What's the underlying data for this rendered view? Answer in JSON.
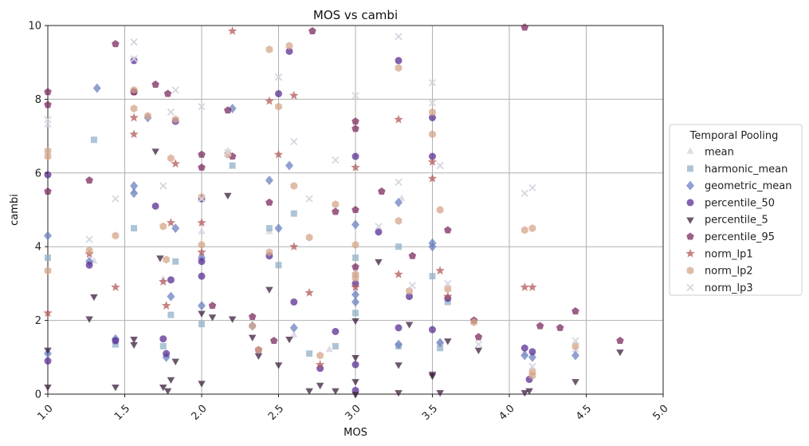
{
  "chart_data": {
    "type": "scatter",
    "title": "MOS vs cambi",
    "xlabel": "MOS",
    "ylabel": "cambi",
    "xlim": [
      1.0,
      5.0
    ],
    "ylim": [
      0,
      10
    ],
    "x_ticks": [
      "1.0",
      "1.5",
      "2.0",
      "2.5",
      "3.0",
      "3.5",
      "4.0",
      "4.5",
      "5.0"
    ],
    "y_ticks": [
      "0",
      "2",
      "4",
      "6",
      "8",
      "10"
    ],
    "grid": true,
    "legend": {
      "title": "Temporal Pooling",
      "placement": "right-outside"
    },
    "series": [
      {
        "name": "mean",
        "marker": "triangle-up",
        "color": "#d9cfe0",
        "points": [
          [
            1.0,
            7.3
          ],
          [
            1.3,
            3.6
          ],
          [
            1.56,
            5.5
          ],
          [
            1.75,
            3.1
          ],
          [
            2.0,
            4.4
          ],
          [
            2.17,
            6.6
          ],
          [
            2.44,
            4.4
          ],
          [
            2.6,
            1.6
          ],
          [
            2.83,
            1.2
          ],
          [
            3.0,
            3.3
          ],
          [
            3.3,
            5.3
          ],
          [
            3.55,
            1.4
          ],
          [
            4.1,
            1.1
          ],
          [
            4.43,
            1.2
          ]
        ]
      },
      {
        "name": "harmonic_mean",
        "marker": "square",
        "color": "#92b0c8",
        "points": [
          [
            1.0,
            3.7
          ],
          [
            1.3,
            6.9
          ],
          [
            1.44,
            1.35
          ],
          [
            1.56,
            4.5
          ],
          [
            1.75,
            1.3
          ],
          [
            1.8,
            2.15
          ],
          [
            1.83,
            3.6
          ],
          [
            2.0,
            1.9
          ],
          [
            2.2,
            6.2
          ],
          [
            2.44,
            4.5
          ],
          [
            2.5,
            3.5
          ],
          [
            2.6,
            4.9
          ],
          [
            2.7,
            1.1
          ],
          [
            2.87,
            1.3
          ],
          [
            3.0,
            3.7
          ],
          [
            3.0,
            2.2
          ],
          [
            3.28,
            4.0
          ],
          [
            3.28,
            1.3
          ],
          [
            3.5,
            3.2
          ],
          [
            3.55,
            1.25
          ],
          [
            3.6,
            2.5
          ]
        ]
      },
      {
        "name": "geometric_mean",
        "marker": "diamond",
        "color": "#6b81c0",
        "points": [
          [
            1.0,
            4.3
          ],
          [
            1.0,
            1.1
          ],
          [
            1.27,
            3.6
          ],
          [
            1.32,
            8.3
          ],
          [
            1.44,
            1.5
          ],
          [
            1.56,
            5.65
          ],
          [
            1.56,
            5.45
          ],
          [
            1.65,
            7.5
          ],
          [
            1.77,
            1.0
          ],
          [
            1.8,
            2.65
          ],
          [
            1.83,
            4.5
          ],
          [
            2.0,
            3.7
          ],
          [
            2.0,
            2.4
          ],
          [
            2.2,
            7.75
          ],
          [
            2.33,
            1.85
          ],
          [
            2.44,
            5.8
          ],
          [
            2.5,
            4.5
          ],
          [
            2.57,
            6.2
          ],
          [
            2.6,
            1.8
          ],
          [
            3.0,
            4.6
          ],
          [
            3.0,
            2.7
          ],
          [
            3.0,
            2.5
          ],
          [
            3.28,
            5.2
          ],
          [
            3.28,
            1.35
          ],
          [
            3.5,
            4.1
          ],
          [
            3.5,
            4.0
          ],
          [
            3.55,
            1.4
          ],
          [
            4.1,
            1.05
          ],
          [
            4.15,
            1.0
          ],
          [
            4.43,
            1.05
          ]
        ]
      },
      {
        "name": "percentile_50",
        "marker": "circle",
        "color": "#5a2d93",
        "points": [
          [
            1.0,
            5.95
          ],
          [
            1.0,
            0.9
          ],
          [
            1.27,
            3.5
          ],
          [
            1.44,
            1.45
          ],
          [
            1.56,
            9.05
          ],
          [
            1.56,
            8.2
          ],
          [
            1.7,
            5.1
          ],
          [
            1.75,
            1.5
          ],
          [
            1.77,
            1.1
          ],
          [
            1.8,
            3.1
          ],
          [
            1.83,
            7.4
          ],
          [
            2.0,
            5.3
          ],
          [
            2.0,
            3.6
          ],
          [
            2.0,
            3.2
          ],
          [
            2.44,
            3.75
          ],
          [
            2.5,
            8.15
          ],
          [
            2.57,
            9.3
          ],
          [
            2.6,
            2.5
          ],
          [
            2.77,
            0.7
          ],
          [
            2.87,
            1.7
          ],
          [
            3.0,
            6.45
          ],
          [
            3.0,
            0.8
          ],
          [
            3.0,
            0.1
          ],
          [
            3.0,
            3.0
          ],
          [
            3.15,
            4.4
          ],
          [
            3.28,
            9.05
          ],
          [
            3.28,
            1.8
          ],
          [
            3.35,
            2.65
          ],
          [
            3.5,
            7.5
          ],
          [
            3.5,
            6.45
          ],
          [
            3.5,
            1.75
          ],
          [
            3.6,
            2.6
          ],
          [
            4.1,
            1.25
          ],
          [
            4.15,
            1.15
          ],
          [
            4.13,
            0.4
          ]
        ]
      },
      {
        "name": "percentile_5",
        "marker": "triangle-down",
        "color": "#3b1f3c",
        "points": [
          [
            1.0,
            0.2
          ],
          [
            1.0,
            1.2
          ],
          [
            1.27,
            2.05
          ],
          [
            1.3,
            2.65
          ],
          [
            1.44,
            0.2
          ],
          [
            1.56,
            1.5
          ],
          [
            1.56,
            1.35
          ],
          [
            1.7,
            6.6
          ],
          [
            1.73,
            3.7
          ],
          [
            1.75,
            0.2
          ],
          [
            1.78,
            0.1
          ],
          [
            1.8,
            0.4
          ],
          [
            1.83,
            0.9
          ],
          [
            2.0,
            0.3
          ],
          [
            2.0,
            2.2
          ],
          [
            2.07,
            2.1
          ],
          [
            2.17,
            5.4
          ],
          [
            2.2,
            2.05
          ],
          [
            2.33,
            1.55
          ],
          [
            2.37,
            1.05
          ],
          [
            2.44,
            2.85
          ],
          [
            2.5,
            0.8
          ],
          [
            2.57,
            1.5
          ],
          [
            2.7,
            0.1
          ],
          [
            2.77,
            0.25
          ],
          [
            2.87,
            0.1
          ],
          [
            3.0,
            1.0
          ],
          [
            3.0,
            0.35
          ],
          [
            3.0,
            0.0
          ],
          [
            3.0,
            2.0
          ],
          [
            3.15,
            3.6
          ],
          [
            3.28,
            0.8
          ],
          [
            3.28,
            0.05
          ],
          [
            3.35,
            1.9
          ],
          [
            3.5,
            0.55
          ],
          [
            3.5,
            0.5
          ],
          [
            3.55,
            0.05
          ],
          [
            3.6,
            1.45
          ],
          [
            3.8,
            1.2
          ],
          [
            4.1,
            0.05
          ],
          [
            4.13,
            0.1
          ],
          [
            4.43,
            0.35
          ],
          [
            4.72,
            1.15
          ]
        ]
      },
      {
        "name": "percentile_95",
        "marker": "pentagon",
        "color": "#7b2a5e",
        "points": [
          [
            1.0,
            8.2
          ],
          [
            1.0,
            7.85
          ],
          [
            1.0,
            5.5
          ],
          [
            1.27,
            5.8
          ],
          [
            1.44,
            9.5
          ],
          [
            1.56,
            8.2
          ],
          [
            1.7,
            8.4
          ],
          [
            1.78,
            8.15
          ],
          [
            2.0,
            6.5
          ],
          [
            2.0,
            6.15
          ],
          [
            2.07,
            2.4
          ],
          [
            2.17,
            7.7
          ],
          [
            2.2,
            6.45
          ],
          [
            2.33,
            2.1
          ],
          [
            2.37,
            1.2
          ],
          [
            2.44,
            5.2
          ],
          [
            2.47,
            1.45
          ],
          [
            2.72,
            9.85
          ],
          [
            2.87,
            4.95
          ],
          [
            3.0,
            7.4
          ],
          [
            3.0,
            7.2
          ],
          [
            3.0,
            5.0
          ],
          [
            3.0,
            3.45
          ],
          [
            3.17,
            5.5
          ],
          [
            3.37,
            3.75
          ],
          [
            3.6,
            4.45
          ],
          [
            3.77,
            2.0
          ],
          [
            3.8,
            1.55
          ],
          [
            4.2,
            1.85
          ],
          [
            4.33,
            1.8
          ],
          [
            4.43,
            2.25
          ],
          [
            4.72,
            1.45
          ],
          [
            4.1,
            9.95
          ]
        ]
      },
      {
        "name": "norm_lp1",
        "marker": "star",
        "color": "#b35a5a",
        "points": [
          [
            1.0,
            2.2
          ],
          [
            1.27,
            3.8
          ],
          [
            1.44,
            2.9
          ],
          [
            1.56,
            7.5
          ],
          [
            1.56,
            7.05
          ],
          [
            1.75,
            3.05
          ],
          [
            1.77,
            2.4
          ],
          [
            1.8,
            4.65
          ],
          [
            1.83,
            6.25
          ],
          [
            2.0,
            4.65
          ],
          [
            2.0,
            3.85
          ],
          [
            2.2,
            9.85
          ],
          [
            2.44,
            7.95
          ],
          [
            2.5,
            6.5
          ],
          [
            2.6,
            8.1
          ],
          [
            2.6,
            4.0
          ],
          [
            2.7,
            2.75
          ],
          [
            2.77,
            0.8
          ],
          [
            3.0,
            6.15
          ],
          [
            3.0,
            2.9
          ],
          [
            3.28,
            7.45
          ],
          [
            3.28,
            3.25
          ],
          [
            3.5,
            6.3
          ],
          [
            3.5,
            5.85
          ],
          [
            3.55,
            3.35
          ],
          [
            3.6,
            2.65
          ],
          [
            4.1,
            2.9
          ],
          [
            4.15,
            2.9
          ]
        ]
      },
      {
        "name": "norm_lp2",
        "marker": "hexagon",
        "color": "#d4a58a",
        "points": [
          [
            1.0,
            6.6
          ],
          [
            1.0,
            6.45
          ],
          [
            1.0,
            3.35
          ],
          [
            1.27,
            3.9
          ],
          [
            1.44,
            4.3
          ],
          [
            1.56,
            8.25
          ],
          [
            1.56,
            7.75
          ],
          [
            1.65,
            7.55
          ],
          [
            1.75,
            4.55
          ],
          [
            1.77,
            3.65
          ],
          [
            1.8,
            6.4
          ],
          [
            1.83,
            7.45
          ],
          [
            2.0,
            5.35
          ],
          [
            2.0,
            4.05
          ],
          [
            2.17,
            6.5
          ],
          [
            2.33,
            1.85
          ],
          [
            2.37,
            1.2
          ],
          [
            2.44,
            9.35
          ],
          [
            2.44,
            3.85
          ],
          [
            2.5,
            7.8
          ],
          [
            2.57,
            9.45
          ],
          [
            2.6,
            5.65
          ],
          [
            2.7,
            4.25
          ],
          [
            2.77,
            1.05
          ],
          [
            2.87,
            5.15
          ],
          [
            3.0,
            4.05
          ],
          [
            3.0,
            3.25
          ],
          [
            3.0,
            3.15
          ],
          [
            3.28,
            8.85
          ],
          [
            3.28,
            4.7
          ],
          [
            3.35,
            2.8
          ],
          [
            3.5,
            7.65
          ],
          [
            3.5,
            7.05
          ],
          [
            3.55,
            5.0
          ],
          [
            3.6,
            2.85
          ],
          [
            3.77,
            1.95
          ],
          [
            4.1,
            4.45
          ],
          [
            4.15,
            4.5
          ],
          [
            4.15,
            0.6
          ],
          [
            4.15,
            0.5
          ],
          [
            4.43,
            1.3
          ]
        ]
      },
      {
        "name": "norm_lp3",
        "marker": "x",
        "color": "#d6d6e0",
        "points": [
          [
            1.0,
            7.45
          ],
          [
            1.27,
            4.2
          ],
          [
            1.44,
            5.3
          ],
          [
            1.56,
            9.55
          ],
          [
            1.56,
            9.1
          ],
          [
            1.75,
            5.65
          ],
          [
            1.8,
            7.65
          ],
          [
            1.83,
            8.25
          ],
          [
            2.0,
            7.8
          ],
          [
            2.0,
            5.3
          ],
          [
            2.17,
            6.55
          ],
          [
            2.5,
            8.6
          ],
          [
            2.6,
            6.85
          ],
          [
            2.7,
            5.3
          ],
          [
            2.87,
            6.35
          ],
          [
            3.0,
            8.1
          ],
          [
            3.15,
            4.55
          ],
          [
            3.28,
            9.7
          ],
          [
            3.28,
            5.75
          ],
          [
            3.37,
            2.95
          ],
          [
            3.5,
            8.45
          ],
          [
            3.5,
            7.9
          ],
          [
            3.55,
            6.2
          ],
          [
            3.6,
            3.0
          ],
          [
            3.8,
            1.35
          ],
          [
            4.1,
            5.45
          ],
          [
            4.15,
            5.6
          ],
          [
            4.15,
            0.75
          ],
          [
            4.43,
            1.45
          ]
        ]
      }
    ]
  }
}
